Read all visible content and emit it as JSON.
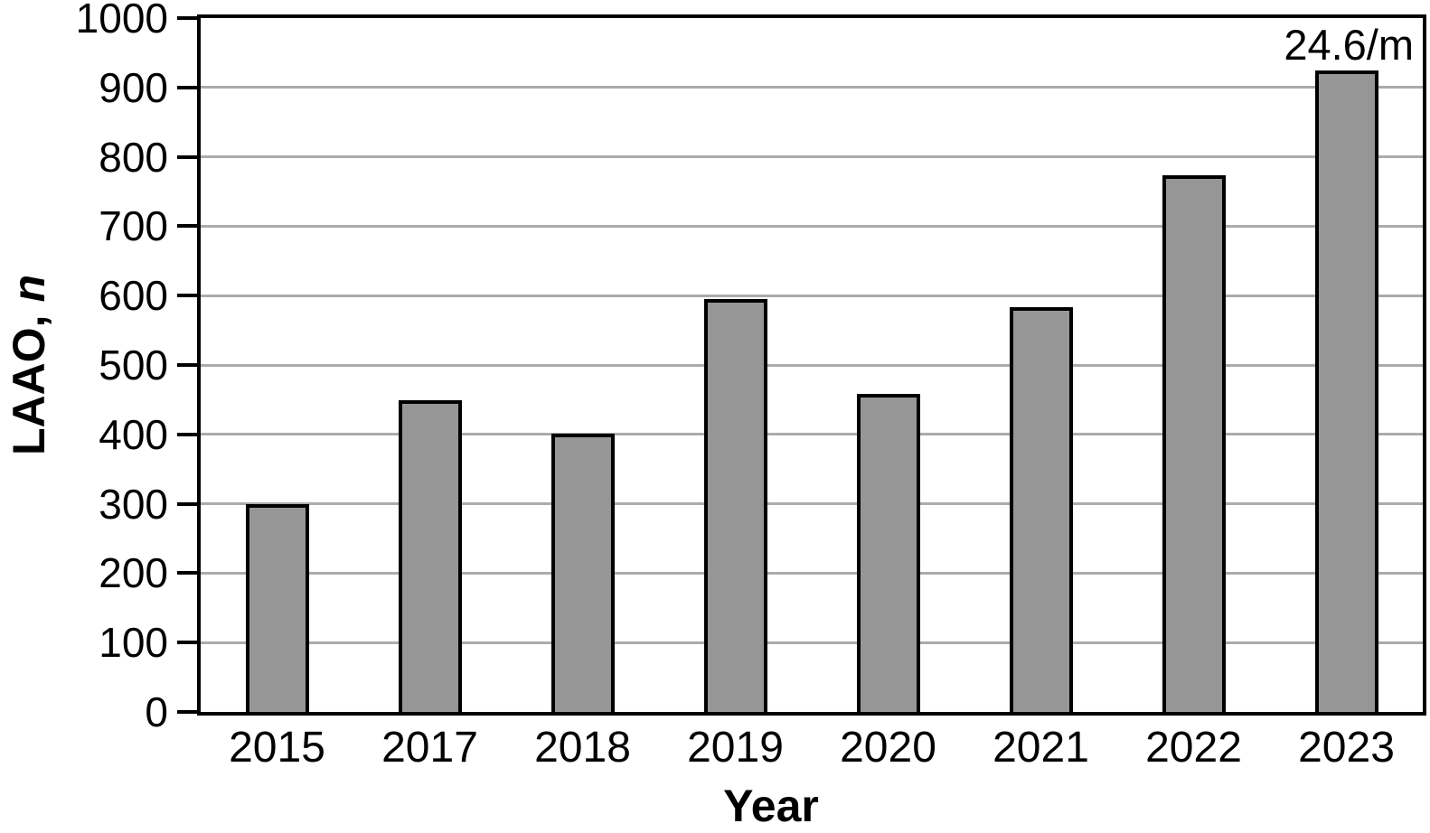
{
  "chart_data": {
    "type": "bar",
    "title": "",
    "categories": [
      "2015",
      "2017",
      "2018",
      "2019",
      "2020",
      "2021",
      "2022",
      "2023"
    ],
    "values": [
      300,
      449,
      401,
      595,
      458,
      584,
      773,
      925
    ],
    "xlabel": "Year",
    "ylabel": "LAAO, n",
    "ylabel_parts": {
      "prefix": "LAAO, ",
      "italic_suffix": "n"
    },
    "ylim": [
      0,
      1000
    ],
    "ytick_step": 100,
    "ytick_labels": [
      "0",
      "100",
      "200",
      "300",
      "400",
      "500",
      "600",
      "700",
      "800",
      "900",
      "1000"
    ],
    "annotation": {
      "text": "24.6/m",
      "target_category": "2023"
    },
    "grid": true,
    "legend": false,
    "colors": {
      "bar_fill": "#969696",
      "bar_border": "#000000",
      "gridline": "#ababab",
      "axis": "#000000",
      "text": "#000000",
      "background": "#ffffff"
    }
  }
}
